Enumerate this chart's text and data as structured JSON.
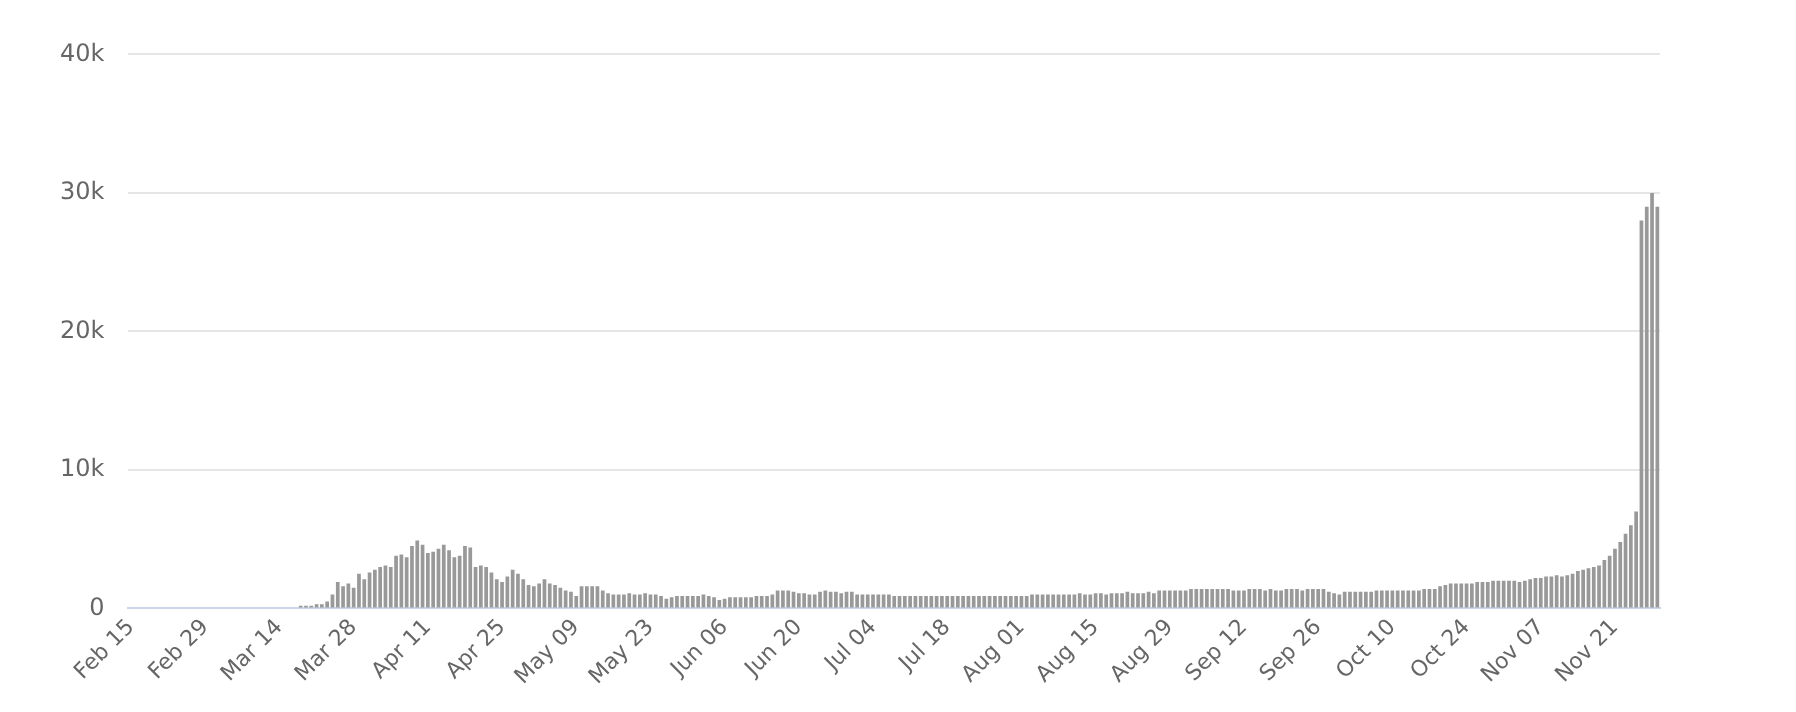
{
  "chart_data": {
    "type": "bar",
    "categories": [
      "Feb 15",
      null,
      null,
      null,
      null,
      null,
      null,
      null,
      null,
      null,
      null,
      null,
      null,
      null,
      "Feb 29",
      null,
      null,
      null,
      null,
      null,
      null,
      null,
      null,
      null,
      null,
      null,
      null,
      null,
      "Mar 14",
      null,
      null,
      null,
      null,
      null,
      null,
      null,
      null,
      null,
      null,
      null,
      null,
      null,
      "Mar 28",
      null,
      null,
      null,
      null,
      null,
      null,
      null,
      null,
      null,
      null,
      null,
      null,
      null,
      "Apr 11",
      null,
      null,
      null,
      null,
      null,
      null,
      null,
      null,
      null,
      null,
      null,
      null,
      null,
      "Apr 25",
      null,
      null,
      null,
      null,
      null,
      null,
      null,
      null,
      null,
      null,
      null,
      null,
      null,
      "May 09",
      null,
      null,
      null,
      null,
      null,
      null,
      null,
      null,
      null,
      null,
      null,
      null,
      null,
      "May 23",
      null,
      null,
      null,
      null,
      null,
      null,
      null,
      null,
      null,
      null,
      null,
      null,
      null,
      "Jun 06",
      null,
      null,
      null,
      null,
      null,
      null,
      null,
      null,
      null,
      null,
      null,
      null,
      null,
      "Jun 20",
      null,
      null,
      null,
      null,
      null,
      null,
      null,
      null,
      null,
      null,
      null,
      null,
      null,
      "Jul 04",
      null,
      null,
      null,
      null,
      null,
      null,
      null,
      null,
      null,
      null,
      null,
      null,
      null,
      "Jul 18",
      null,
      null,
      null,
      null,
      null,
      null,
      null,
      null,
      null,
      null,
      null,
      null,
      null,
      "Aug 01",
      null,
      null,
      null,
      null,
      null,
      null,
      null,
      null,
      null,
      null,
      null,
      null,
      null,
      "Aug 15",
      null,
      null,
      null,
      null,
      null,
      null,
      null,
      null,
      null,
      null,
      null,
      null,
      null,
      "Aug 29",
      null,
      null,
      null,
      null,
      null,
      null,
      null,
      null,
      null,
      null,
      null,
      null,
      null,
      "Sep 12",
      null,
      null,
      null,
      null,
      null,
      null,
      null,
      null,
      null,
      null,
      null,
      null,
      null,
      "Sep 26",
      null,
      null,
      null,
      null,
      null,
      null,
      null,
      null,
      null,
      null,
      null,
      null,
      null,
      "Oct 10",
      null,
      null,
      null,
      null,
      null,
      null,
      null,
      null,
      null,
      null,
      null,
      null,
      null,
      "Oct 24",
      null,
      null,
      null,
      null,
      null,
      null,
      null,
      null,
      null,
      null,
      null,
      null,
      null,
      "Nov 07",
      null,
      null,
      null,
      null,
      null,
      null,
      null,
      null,
      null,
      null,
      null,
      null,
      null,
      "Nov 21",
      null,
      null,
      null,
      null,
      null,
      null,
      null,
      null
    ],
    "values": [
      0,
      0,
      0,
      0,
      0,
      0,
      0,
      0,
      0,
      0,
      0,
      0,
      0,
      0,
      0,
      0,
      0,
      0,
      0,
      0,
      0,
      0,
      0,
      0,
      0,
      0,
      0,
      0,
      0,
      0,
      0,
      0,
      200,
      200,
      200,
      300,
      300,
      500,
      1000,
      1900,
      1600,
      1800,
      1500,
      2500,
      2100,
      2600,
      2800,
      3000,
      3100,
      3000,
      3800,
      3900,
      3700,
      4500,
      4900,
      4600,
      4000,
      4100,
      4300,
      4600,
      4200,
      3700,
      3800,
      4500,
      4400,
      3000,
      3100,
      3000,
      2600,
      2100,
      1900,
      2300,
      2800,
      2500,
      2100,
      1700,
      1600,
      1800,
      2100,
      1800,
      1700,
      1500,
      1300,
      1200,
      900,
      1600,
      1600,
      1600,
      1600,
      1300,
      1100,
      1000,
      1000,
      1000,
      1100,
      1000,
      1000,
      1100,
      1000,
      1000,
      900,
      700,
      800,
      900,
      900,
      900,
      900,
      900,
      1000,
      900,
      800,
      600,
      700,
      800,
      800,
      800,
      800,
      800,
      900,
      900,
      900,
      1000,
      1300,
      1300,
      1300,
      1200,
      1100,
      1100,
      1000,
      1000,
      1200,
      1300,
      1200,
      1200,
      1100,
      1200,
      1200,
      1000,
      1000,
      1000,
      1000,
      1000,
      1000,
      1000,
      900,
      900,
      900,
      900,
      900,
      900,
      900,
      900,
      900,
      900,
      900,
      900,
      900,
      900,
      900,
      900,
      900,
      900,
      900,
      900,
      900,
      900,
      900,
      900,
      900,
      900,
      1000,
      1000,
      1000,
      1000,
      1000,
      1000,
      1000,
      1000,
      1000,
      1100,
      1000,
      1000,
      1100,
      1100,
      1000,
      1100,
      1100,
      1100,
      1200,
      1100,
      1100,
      1100,
      1200,
      1100,
      1300,
      1300,
      1300,
      1300,
      1300,
      1300,
      1400,
      1400,
      1400,
      1400,
      1400,
      1400,
      1400,
      1400,
      1300,
      1300,
      1300,
      1400,
      1400,
      1400,
      1300,
      1400,
      1300,
      1300,
      1400,
      1400,
      1400,
      1300,
      1400,
      1400,
      1400,
      1400,
      1200,
      1100,
      1000,
      1200,
      1200,
      1200,
      1200,
      1200,
      1200,
      1300,
      1300,
      1300,
      1300,
      1300,
      1300,
      1300,
      1300,
      1300,
      1400,
      1400,
      1400,
      1600,
      1700,
      1800,
      1800,
      1800,
      1800,
      1800,
      1900,
      1900,
      1900,
      2000,
      2000,
      2000,
      2000,
      2000,
      1900,
      2000,
      2100,
      2200,
      2200,
      2300,
      2300,
      2400,
      2300,
      2400,
      2500,
      2700,
      2800,
      2900,
      3000,
      3100,
      3500,
      3800,
      4300,
      4800,
      5400,
      6000,
      7000,
      28000,
      29000,
      30000,
      29000
    ],
    "color": "#999999",
    "ylim": [
      0,
      40000
    ],
    "yticks": [
      {
        "value": 0,
        "label": "0"
      },
      {
        "value": 10000,
        "label": "10k"
      },
      {
        "value": 20000,
        "label": "20k"
      },
      {
        "value": 30000,
        "label": "30k"
      },
      {
        "value": 40000,
        "label": "40k"
      }
    ],
    "grid": "y",
    "legend": false
  }
}
